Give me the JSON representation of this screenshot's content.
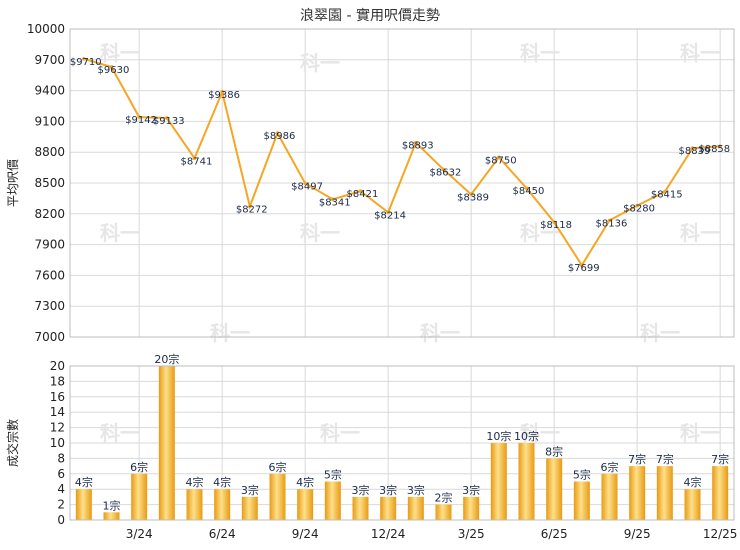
{
  "chart_data": [
    {
      "type": "line",
      "title": "浪翠園 - 實用呎價走勢",
      "ylabel": "平均呎價",
      "ylim": [
        7000,
        10000
      ],
      "yticks": [
        7000,
        7300,
        7600,
        7900,
        8200,
        8500,
        8800,
        9100,
        9400,
        9700,
        10000
      ],
      "grid": true,
      "color": "#f5a623",
      "labels": [
        "$9710",
        "$9630",
        "$9142",
        "$9133",
        "$8741",
        "$9386",
        "$8272",
        "$8986",
        "$8497",
        "$8341",
        "$8421",
        "$8214",
        "$8893",
        "$8632",
        "$8389",
        "$8750",
        "$8450",
        "$8118",
        "$7699",
        "$8136",
        "$8280",
        "$8415",
        "$8839",
        "$8858"
      ],
      "values": [
        9710,
        9630,
        9142,
        9133,
        8741,
        9386,
        8272,
        8986,
        8497,
        8341,
        8421,
        8214,
        8893,
        8632,
        8389,
        8750,
        8450,
        8118,
        7699,
        8136,
        8280,
        8415,
        8839,
        8858
      ]
    },
    {
      "type": "bar",
      "ylabel": "成交宗數",
      "ylim": [
        0,
        20
      ],
      "yticks": [
        0,
        2,
        4,
        6,
        8,
        10,
        12,
        14,
        16,
        18,
        20
      ],
      "grid": true,
      "x_tick_labels": [
        "3/24",
        "6/24",
        "9/24",
        "12/24",
        "3/25",
        "6/25",
        "9/25",
        "12/25"
      ],
      "labels": [
        "4宗",
        "1宗",
        "6宗",
        "20宗",
        "4宗",
        "4宗",
        "3宗",
        "6宗",
        "4宗",
        "5宗",
        "3宗",
        "3宗",
        "3宗",
        "2宗",
        "3宗",
        "10宗",
        "10宗",
        "8宗",
        "5宗",
        "6宗",
        "7宗",
        "7宗",
        "4宗",
        "7宗"
      ],
      "values": [
        4,
        1,
        6,
        20,
        4,
        4,
        3,
        6,
        4,
        5,
        3,
        3,
        3,
        2,
        3,
        10,
        10,
        8,
        5,
        6,
        7,
        7,
        4,
        7
      ]
    }
  ],
  "watermark": "科一"
}
